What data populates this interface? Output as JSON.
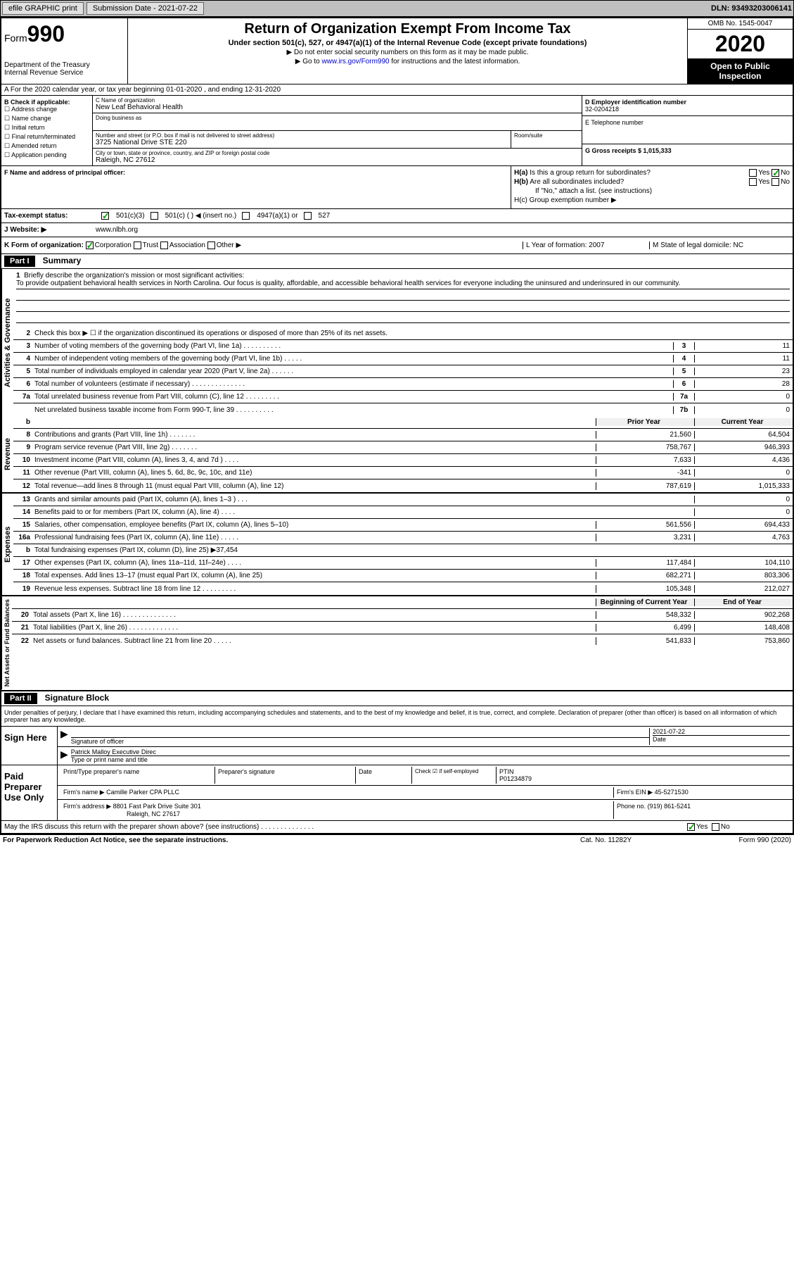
{
  "topbar": {
    "efile": "efile GRAPHIC print",
    "submission_label": "Submission Date - 2021-07-22",
    "dln": "DLN: 93493203006141"
  },
  "header": {
    "form_label": "Form",
    "form_number": "990",
    "dept": "Department of the Treasury\nInternal Revenue Service",
    "title": "Return of Organization Exempt From Income Tax",
    "sub": "Under section 501(c), 527, or 4947(a)(1) of the Internal Revenue Code (except private foundations)",
    "note1": "▶ Do not enter social security numbers on this form as it may be made public.",
    "note2_pre": "▶ Go to ",
    "note2_link": "www.irs.gov/Form990",
    "note2_post": " for instructions and the latest information.",
    "omb": "OMB No. 1545-0047",
    "year": "2020",
    "otp": "Open to Public Inspection"
  },
  "row_a": "A For the 2020 calendar year, or tax year beginning 01-01-2020   , and ending 12-31-2020",
  "col_b": {
    "label": "B Check if applicable:",
    "addr": "Address change",
    "name": "Name change",
    "initial": "Initial return",
    "final": "Final return/terminated",
    "amended": "Amended return",
    "app": "Application pending"
  },
  "col_c": {
    "name_label": "C Name of organization",
    "name": "New Leaf Behavioral Health",
    "dba_label": "Doing business as",
    "addr_label": "Number and street (or P.O. box if mail is not delivered to street address)",
    "addr": "3725 National Drive STE 220",
    "room_label": "Room/suite",
    "city_label": "City or town, state or province, country, and ZIP or foreign postal code",
    "city": "Raleigh, NC  27612"
  },
  "col_de": {
    "ein_label": "D Employer identification number",
    "ein": "32-0204218",
    "tel_label": "E Telephone number",
    "gross_label": "G Gross receipts $ 1,015,333"
  },
  "col_f": {
    "label": "F  Name and address of principal officer:"
  },
  "col_h": {
    "ha_label": "H(a)  Is this a group return for subordinates?",
    "ha_yes": "Yes",
    "ha_no": "No",
    "hb_label": "H(b)  Are all subordinates included?",
    "hb_note": "If \"No,\" attach a list. (see instructions)",
    "hc_label": "H(c)  Group exemption number ▶"
  },
  "tax_row": {
    "label": "Tax-exempt status:",
    "c3": "501(c)(3)",
    "c": "501(c) (   ) ◀ (insert no.)",
    "a1": "4947(a)(1) or",
    "s527": "527"
  },
  "web_row": {
    "label": "J Website: ▶",
    "url": "www.nlbh.org"
  },
  "row_k": {
    "label": "K Form of organization:",
    "corp": "Corporation",
    "trust": "Trust",
    "assoc": "Association",
    "other": "Other ▶",
    "year_label": "L Year of formation: 2007",
    "state_label": "M State of legal domicile: NC"
  },
  "part1": {
    "header": "Part I",
    "title": "Summary"
  },
  "mission": {
    "num": "1",
    "label": "Briefly describe the organization's mission or most significant activities:",
    "text": "To provide outpatient behavioral health services in North Carolina. Our focus is quality, affordable, and accessible behavioral health services for everyone including the uninsured and underinsured in our community."
  },
  "lines_gov": [
    {
      "num": "2",
      "desc": "Check this box ▶ ☐  if the organization discontinued its operations or disposed of more than 25% of its net assets."
    },
    {
      "num": "3",
      "desc": "Number of voting members of the governing body (Part VI, line 1a)  .  .  .  .  .  .  .  .  .  .",
      "box": "3",
      "val": "11"
    },
    {
      "num": "4",
      "desc": "Number of independent voting members of the governing body (Part VI, line 1b)  .  .  .  .  .",
      "box": "4",
      "val": "11"
    },
    {
      "num": "5",
      "desc": "Total number of individuals employed in calendar year 2020 (Part V, line 2a)  .  .  .  .  .  .",
      "box": "5",
      "val": "23"
    },
    {
      "num": "6",
      "desc": "Total number of volunteers (estimate if necessary)  .  .  .  .  .  .  .  .  .  .  .  .  .  .",
      "box": "6",
      "val": "28"
    },
    {
      "num": "7a",
      "desc": "Total unrelated business revenue from Part VIII, column (C), line 12  .  .  .  .  .  .  .  .  .",
      "box": "7a",
      "val": "0"
    },
    {
      "num": "",
      "desc": "Net unrelated business taxable income from Form 990-T, line 39  .  .  .  .  .  .  .  .  .  .",
      "box": "7b",
      "val": "0"
    }
  ],
  "col_headers": {
    "b": "b",
    "prior": "Prior Year",
    "current": "Current Year"
  },
  "lines_rev": [
    {
      "num": "8",
      "desc": "Contributions and grants (Part VIII, line 1h)  .  .  .  .  .  .  .",
      "prior": "21,560",
      "curr": "64,504"
    },
    {
      "num": "9",
      "desc": "Program service revenue (Part VIII, line 2g)  .  .  .  .  .  .  .",
      "prior": "758,767",
      "curr": "946,393"
    },
    {
      "num": "10",
      "desc": "Investment income (Part VIII, column (A), lines 3, 4, and 7d )  .  .  .  .",
      "prior": "7,633",
      "curr": "4,436"
    },
    {
      "num": "11",
      "desc": "Other revenue (Part VIII, column (A), lines 5, 6d, 8c, 9c, 10c, and 11e)",
      "prior": "-341",
      "curr": "0"
    },
    {
      "num": "12",
      "desc": "Total revenue—add lines 8 through 11 (must equal Part VIII, column (A), line 12)",
      "prior": "787,619",
      "curr": "1,015,333"
    }
  ],
  "lines_exp": [
    {
      "num": "13",
      "desc": "Grants and similar amounts paid (Part IX, column (A), lines 1–3 )  .  .  .",
      "prior": "",
      "curr": "0"
    },
    {
      "num": "14",
      "desc": "Benefits paid to or for members (Part IX, column (A), line 4)  .  .  .  .",
      "prior": "",
      "curr": "0"
    },
    {
      "num": "15",
      "desc": "Salaries, other compensation, employee benefits (Part IX, column (A), lines 5–10)",
      "prior": "561,556",
      "curr": "694,433"
    },
    {
      "num": "16a",
      "desc": "Professional fundraising fees (Part IX, column (A), line 11e)  .  .  .  .  .",
      "prior": "3,231",
      "curr": "4,763"
    },
    {
      "num": "b",
      "desc": "Total fundraising expenses (Part IX, column (D), line 25) ▶37,454",
      "prior": "shaded",
      "curr": "shaded"
    },
    {
      "num": "17",
      "desc": "Other expenses (Part IX, column (A), lines 11a–11d, 11f–24e)  .  .  .  .",
      "prior": "117,484",
      "curr": "104,110"
    },
    {
      "num": "18",
      "desc": "Total expenses. Add lines 13–17 (must equal Part IX, column (A), line 25)",
      "prior": "682,271",
      "curr": "803,306"
    },
    {
      "num": "19",
      "desc": "Revenue less expenses. Subtract line 18 from line 12  .  .  .  .  .  .  .  .  .",
      "prior": "105,348",
      "curr": "212,027"
    }
  ],
  "net_headers": {
    "begin": "Beginning of Current Year",
    "end": "End of Year"
  },
  "lines_net": [
    {
      "num": "20",
      "desc": "Total assets (Part X, line 16)  .  .  .  .  .  .  .  .  .  .  .  .  .  .",
      "prior": "548,332",
      "curr": "902,268"
    },
    {
      "num": "21",
      "desc": "Total liabilities (Part X, line 26)  .  .  .  .  .  .  .  .  .  .  .  .  .",
      "prior": "6,499",
      "curr": "148,408"
    },
    {
      "num": "22",
      "desc": "Net assets or fund balances. Subtract line 21 from line 20  .  .  .  .  .",
      "prior": "541,833",
      "curr": "753,860"
    }
  ],
  "part2": {
    "header": "Part II",
    "title": "Signature Block"
  },
  "penalties": "Under penalties of perjury, I declare that I have examined this return, including accompanying schedules and statements, and to the best of my knowledge and belief, it is true, correct, and complete. Declaration of preparer (other than officer) is based on all information of which preparer has any knowledge.",
  "sign": {
    "label": "Sign Here",
    "sig_label": "Signature of officer",
    "date_label": "Date",
    "date": "2021-07-22",
    "name": "Patrick Malloy  Executive Direc",
    "name_label": "Type or print name and title"
  },
  "preparer": {
    "label": "Paid Preparer Use Only",
    "print_label": "Print/Type preparer's name",
    "sig_label": "Preparer's signature",
    "date_label": "Date",
    "check_label": "Check ☑ if self-employed",
    "ptin_label": "PTIN",
    "ptin": "P01234879",
    "firm_label": "Firm's name    ▶",
    "firm": "Camille Parker CPA PLLC",
    "ein_label": "Firm's EIN ▶",
    "ein": "45-5271530",
    "addr_label": "Firm's address ▶",
    "addr1": "8801 Fast Park Drive Suite 301",
    "addr2": "Raleigh, NC  27617",
    "phone_label": "Phone no.",
    "phone": "(919) 861-5241"
  },
  "discuss": {
    "text": "May the IRS discuss this return with the preparer shown above? (see instructions)  .  .  .  .  .  .  .  .  .  .  .  .  .  .",
    "yes": "Yes",
    "no": "No"
  },
  "footer": {
    "left": "For Paperwork Reduction Act Notice, see the separate instructions.",
    "mid": "Cat. No. 11282Y",
    "right": "Form 990 (2020)"
  },
  "vert_labels": {
    "gov": "Activities & Governance",
    "rev": "Revenue",
    "exp": "Expenses",
    "net": "Net Assets or Fund Balances"
  }
}
